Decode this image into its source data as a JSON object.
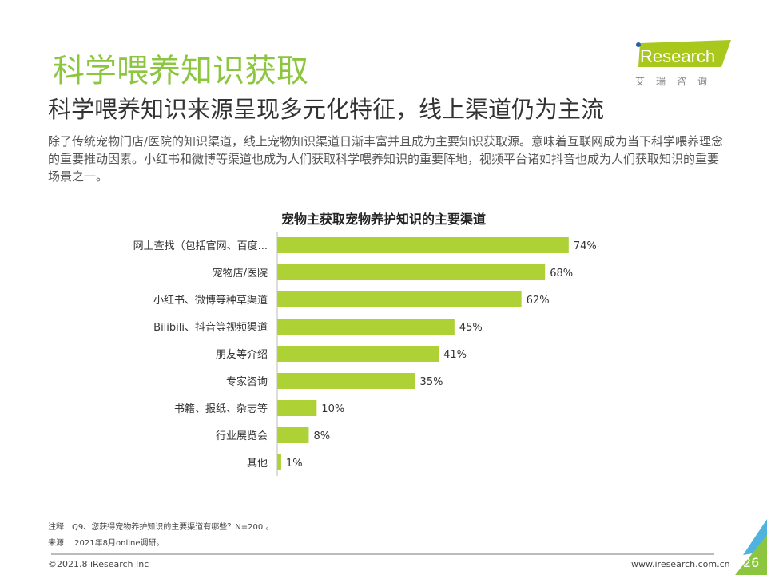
{
  "header": {
    "title": "科学喂养知识获取",
    "subtitle": "科学喂养知识来源呈现多元化特征，线上渠道仍为主流",
    "description": "除了传统宠物门店/医院的知识渠道，线上宠物知识渠道日渐丰富并且成为主要知识获取源。意味着互联网成为当下科学喂养理念的重要推动因素。小红书和微博等渠道也成为人们获取科学喂养知识的重要阵地，视频平台诸如抖音也成为人们获取知识的重要场景之一。"
  },
  "logo": {
    "text": "iResearch",
    "cn": "艾瑞咨询",
    "color": "#a8c81e"
  },
  "chart_data": {
    "type": "bar",
    "orientation": "horizontal",
    "title": "宠物主获取宠物养护知识的主要渠道",
    "categories": [
      "网上查找（包括官网、百度...",
      "宠物店/医院",
      "小红书、微博等种草渠道",
      "Bilibili、抖音等视频渠道",
      "朋友等介绍",
      "专家咨询",
      "书籍、报纸、杂志等",
      "行业展览会",
      "其他"
    ],
    "values": [
      74,
      68,
      62,
      45,
      41,
      35,
      10,
      8,
      1
    ],
    "labels": [
      "74%",
      "68%",
      "62%",
      "45%",
      "41%",
      "35%",
      "10%",
      "8%",
      "1%"
    ],
    "unit": "%",
    "xlim": [
      0,
      100
    ],
    "bar_color": "#aed136",
    "grid": false
  },
  "footer": {
    "note": "注释：Q9、您获得宠物养护知识的主要渠道有哪些？N=200 。",
    "source": "来源： 2021年8月online调研。",
    "copyright": "©2021.8 iResearch Inc",
    "website": "www.iresearch.com.cn",
    "page": "26"
  }
}
